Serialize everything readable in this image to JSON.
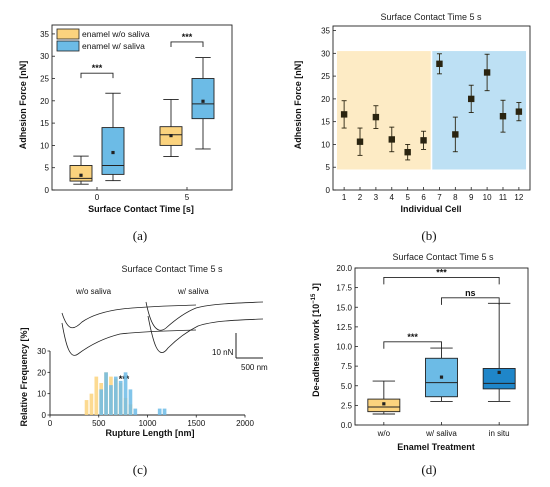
{
  "colors": {
    "orange": "#fbd37e",
    "blue": "#6cbbe6",
    "dark_blue": "#1f86c9",
    "navy": "#1565a8",
    "marker": "#2a2410"
  },
  "chart_data": [
    {
      "type": "box",
      "panel_label": "(a)",
      "xlabel": "Surface Contact Time [s]",
      "ylabel": "Adhesion Force [nN]",
      "ylim": [
        0,
        37
      ],
      "yticks": [
        "0",
        "5",
        "10",
        "15",
        "20",
        "25",
        "30",
        "35"
      ],
      "categories": [
        "0",
        "5"
      ],
      "legend_position": "top-left",
      "series": [
        {
          "name": "enamel w/o saliva",
          "color": "#fbd37e",
          "boxes": [
            {
              "min": 1.3,
              "q1": 2.0,
              "median": 2.6,
              "q3": 5.5,
              "max": 7.6,
              "mean": 3.3
            },
            {
              "min": 7.5,
              "q1": 10.0,
              "median": 12.4,
              "q3": 14.2,
              "max": 20.3,
              "mean": 12.2
            }
          ]
        },
        {
          "name": "enamel w/ saliva",
          "color": "#6cbbe6",
          "boxes": [
            {
              "min": 2.1,
              "q1": 3.5,
              "median": 5.5,
              "q3": 14.0,
              "max": 21.7,
              "mean": 8.4
            },
            {
              "min": 9.2,
              "q1": 16.0,
              "median": 19.3,
              "q3": 25.0,
              "max": 29.7,
              "mean": 19.9
            }
          ]
        }
      ],
      "significance": [
        "***",
        "***"
      ]
    },
    {
      "type": "errorbar",
      "panel_label": "(b)",
      "title": "Surface Contact Time 5 s",
      "xlabel": "Individual Cell",
      "ylabel": "Adhesion Force [nN]",
      "ylim": [
        0,
        36
      ],
      "yticks": [
        "0",
        "5",
        "10",
        "15",
        "20",
        "25",
        "30",
        "35"
      ],
      "categories": [
        "1",
        "2",
        "3",
        "4",
        "5",
        "6",
        "7",
        "8",
        "9",
        "10",
        "11",
        "12"
      ],
      "values": [
        16.6,
        10.6,
        16.0,
        11.1,
        8.3,
        10.9,
        27.7,
        12.2,
        20.0,
        25.8,
        16.2,
        17.2
      ],
      "errors": [
        3.0,
        3.0,
        2.5,
        2.7,
        1.7,
        2.0,
        2.2,
        3.8,
        3.0,
        4.0,
        3.5,
        2.0
      ],
      "groups": [
        {
          "name": "enamel w/o saliva",
          "cells": [
            1,
            6
          ],
          "color": "#fbd37e"
        },
        {
          "name": "enamel w/ saliva",
          "cells": [
            7,
            12
          ],
          "color": "#6cbbe6"
        }
      ]
    },
    {
      "type": "histogram",
      "panel_label": "(c)",
      "title": "Surface Contact Time 5 s",
      "xlabel": "Rupture Length [nm]",
      "ylabel": "Relative Frequency [%]",
      "xlim": [
        0,
        2000
      ],
      "ylim": [
        0,
        30
      ],
      "xticks": [
        "0",
        "500",
        "1000",
        "1500",
        "2000"
      ],
      "yticks": [
        "0",
        "10",
        "20",
        "30"
      ],
      "annotations": {
        "left_trace": "w/o saliva",
        "right_trace": "w/ saliva",
        "scale_force": "10 nN",
        "scale_length": "500 nm",
        "significance": "***"
      },
      "series": [
        {
          "name": "w/o saliva",
          "color": "#fbd37e",
          "bins": [
            350,
            400,
            450,
            500,
            550,
            600,
            650,
            700,
            750,
            800
          ],
          "values": [
            7,
            10,
            18,
            15,
            20,
            18,
            17,
            15,
            8,
            5
          ]
        },
        {
          "name": "w/ saliva",
          "color": "#6cbbe6",
          "bins": [
            500,
            550,
            600,
            650,
            700,
            750,
            800,
            850,
            1100,
            1150
          ],
          "values": [
            12,
            20,
            14,
            18,
            16,
            20,
            12,
            3,
            3,
            3
          ]
        }
      ]
    },
    {
      "type": "box",
      "panel_label": "(d)",
      "title": "Surface Contact Time 5 s",
      "xlabel": "Enamel Treatment",
      "ylabel": "De-adhesion work [10^-15 J]",
      "ylim": [
        0,
        20
      ],
      "yticks": [
        "0.0",
        "2.5",
        "5.0",
        "7.5",
        "10.0",
        "12.5",
        "15.0",
        "17.5",
        "20.0"
      ],
      "categories": [
        "w/o",
        "w/ saliva",
        "in situ"
      ],
      "boxes": [
        {
          "min": 1.4,
          "q1": 1.7,
          "median": 2.3,
          "q3": 3.3,
          "max": 5.6,
          "mean": 2.7,
          "color": "#fbd37e"
        },
        {
          "min": 3.0,
          "q1": 3.6,
          "median": 5.4,
          "q3": 8.5,
          "max": 9.8,
          "mean": 6.1,
          "color": "#6cbbe6"
        },
        {
          "min": 3.0,
          "q1": 4.6,
          "median": 5.3,
          "q3": 7.2,
          "max": 15.5,
          "mean": 6.7,
          "color": "#1f86c9"
        }
      ],
      "significance": [
        {
          "pair": [
            "w/o",
            "w/ saliva"
          ],
          "label": "***"
        },
        {
          "pair": [
            "w/ saliva",
            "in situ"
          ],
          "label": "ns"
        },
        {
          "pair": [
            "w/o",
            "in situ"
          ],
          "label": "***"
        }
      ]
    }
  ]
}
